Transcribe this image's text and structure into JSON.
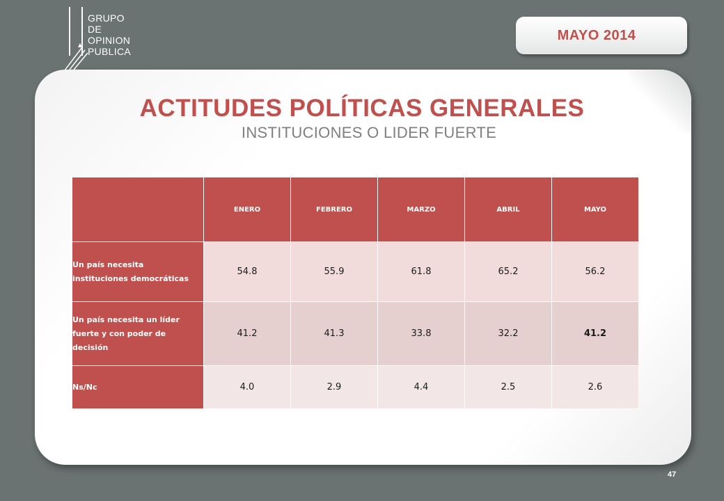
{
  "logo": {
    "lines": [
      "GRUPO",
      "DE",
      "OPINION",
      "PUBLICA"
    ]
  },
  "date_badge": "MAYO  2014",
  "title": "ACTITUDES POLÍTICAS GENERALES",
  "subtitle": "INSTITUCIONES O LIDER FUERTE",
  "table": {
    "columns": [
      "ENERO",
      "FEBRERO",
      "MARZO",
      "ABRIL",
      "MAYO"
    ],
    "rows": [
      {
        "label": "Un país necesita instituciones democráticas",
        "values": [
          "54.8",
          "55.9",
          "61.8",
          "65.2",
          "56.2"
        ]
      },
      {
        "label": "Un país necesita un líder fuerte y con poder de decisión",
        "values": [
          "41.2",
          "41.3",
          "33.8",
          "32.2",
          "41.2"
        ]
      },
      {
        "label": "Ns/Nc",
        "values": [
          "4.0",
          "2.9",
          "4.4",
          "2.5",
          "2.6"
        ]
      }
    ]
  },
  "page_number": "47",
  "colors": {
    "accent": "#c0504d",
    "background": "#6b7272"
  }
}
